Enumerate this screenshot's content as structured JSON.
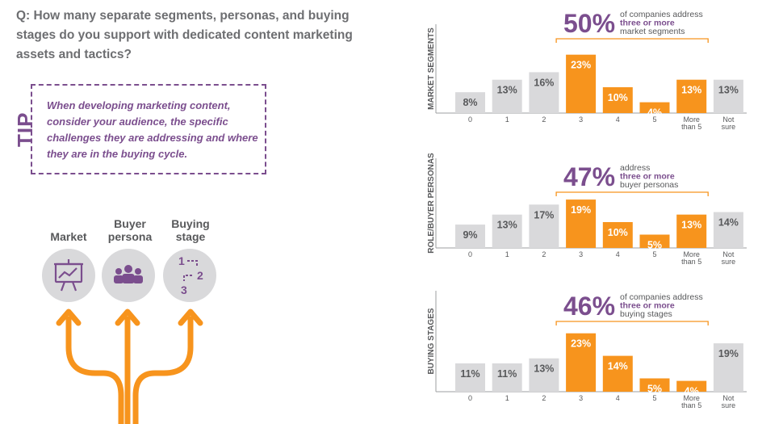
{
  "question": "Q: How many separate segments, personas, and buying stages do you support with dedicated content marketing assets and tactics?",
  "tip": {
    "label": "TIP",
    "text": "When developing marketing content, consider your audience, the specific challenges they are addressing and where they are in the buying cycle."
  },
  "categories": [
    {
      "label_lines": [
        "Market"
      ],
      "icon": "presentation-chart-icon"
    },
    {
      "label_lines": [
        "Buyer",
        "persona"
      ],
      "icon": "people-group-icon"
    },
    {
      "label_lines": [
        "Buying",
        "stage"
      ],
      "icon": "stage-steps-icon",
      "steps": [
        "1",
        "2",
        "3"
      ]
    }
  ],
  "colors": {
    "purple": "#7b4e8e",
    "orange": "#f7941d",
    "gray_bar": "#d9d9db",
    "text_gray": "#58595b",
    "arrow": "#f7941d"
  },
  "chart_data": [
    {
      "type": "bar",
      "ylabel": "MARKET SEGMENTS",
      "categories": [
        "0",
        "1",
        "2",
        "3",
        "4",
        "5",
        "More than 5",
        "Not sure"
      ],
      "values": [
        8,
        13,
        16,
        23,
        10,
        4,
        13,
        13
      ],
      "labels": [
        "8%",
        "13%",
        "16%",
        "23%",
        "10%",
        "4%",
        "13%",
        "13%"
      ],
      "highlight": [
        false,
        false,
        false,
        true,
        true,
        true,
        true,
        false
      ],
      "callout": {
        "percent": "50%",
        "lines": [
          "of companies address",
          "three or more",
          "market segments"
        ],
        "emphasis_line": 1
      },
      "ylim": [
        0,
        25
      ]
    },
    {
      "type": "bar",
      "ylabel": "ROLE/BUYER PERSONAS",
      "categories": [
        "0",
        "1",
        "2",
        "3",
        "4",
        "5",
        "More than 5",
        "Not sure"
      ],
      "values": [
        9,
        13,
        17,
        19,
        10,
        5,
        13,
        14
      ],
      "labels": [
        "9%",
        "13%",
        "17%",
        "19%",
        "10%",
        "5%",
        "13%",
        "14%"
      ],
      "highlight": [
        false,
        false,
        false,
        true,
        true,
        true,
        true,
        false
      ],
      "callout": {
        "percent": "47%",
        "lines": [
          "address",
          "three or more",
          "buyer personas"
        ],
        "emphasis_line": 1
      },
      "ylim": [
        0,
        25
      ]
    },
    {
      "type": "bar",
      "ylabel": "BUYING STAGES",
      "categories": [
        "0",
        "1",
        "2",
        "3",
        "4",
        "5",
        "More than 5",
        "Not sure"
      ],
      "values": [
        11,
        11,
        13,
        23,
        14,
        5,
        4,
        19
      ],
      "labels": [
        "11%",
        "11%",
        "13%",
        "23%",
        "14%",
        "5%",
        "4%",
        "19%"
      ],
      "highlight": [
        false,
        false,
        false,
        true,
        true,
        true,
        true,
        false
      ],
      "callout": {
        "percent": "46%",
        "lines": [
          "of companies address",
          "three or more",
          "buying stages"
        ],
        "emphasis_line": 1
      },
      "ylim": [
        0,
        25
      ]
    }
  ]
}
